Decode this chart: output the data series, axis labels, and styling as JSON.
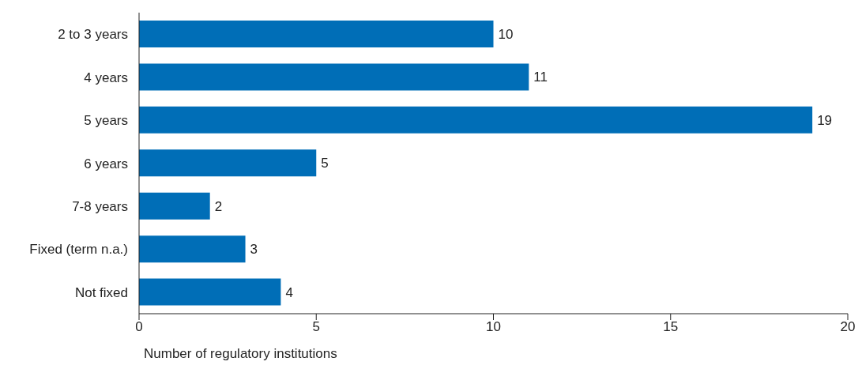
{
  "chart_data": {
    "type": "bar",
    "orientation": "horizontal",
    "xlabel": "Number of regulatory institutions",
    "categories": [
      "2 to 3 years",
      "4 years",
      "5 years",
      "6 years",
      "7-8 years",
      "Fixed (term n.a.)",
      "Not fixed"
    ],
    "values": [
      10,
      11,
      19,
      5,
      2,
      3,
      4
    ],
    "color": "#006eb7",
    "xlim": [
      0,
      20
    ],
    "xticks": [
      0,
      5,
      10,
      15,
      20
    ],
    "grid": false,
    "data_labels": true
  }
}
